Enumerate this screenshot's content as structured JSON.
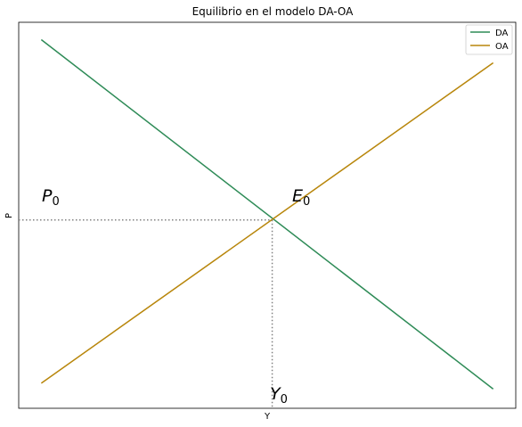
{
  "chart_data": {
    "type": "line",
    "title": "Equilibrio en el modelo DA-OA",
    "xlabel": "Y",
    "ylabel": "P",
    "xlim": [
      -0.05,
      1.05
    ],
    "ylim": [
      0.0,
      1.0
    ],
    "grid": false,
    "ticks": false,
    "legend_position": "top-right",
    "series": [
      {
        "name": "DA",
        "color": "#2e8b57",
        "x": [
          0,
          1
        ],
        "y": [
          0.955,
          0.05
        ]
      },
      {
        "name": "OA",
        "color": "#b8860b",
        "x": [
          0,
          1
        ],
        "y": [
          0.065,
          0.895
        ]
      }
    ],
    "equilibrium": {
      "x": 0.511,
      "y": 0.488
    },
    "guide_color": "#808080",
    "annotations": {
      "p0": {
        "base": "P",
        "sub": "0"
      },
      "e0": {
        "base": "E",
        "sub": "0"
      },
      "y0": {
        "base": "Y",
        "sub": "0"
      }
    }
  }
}
